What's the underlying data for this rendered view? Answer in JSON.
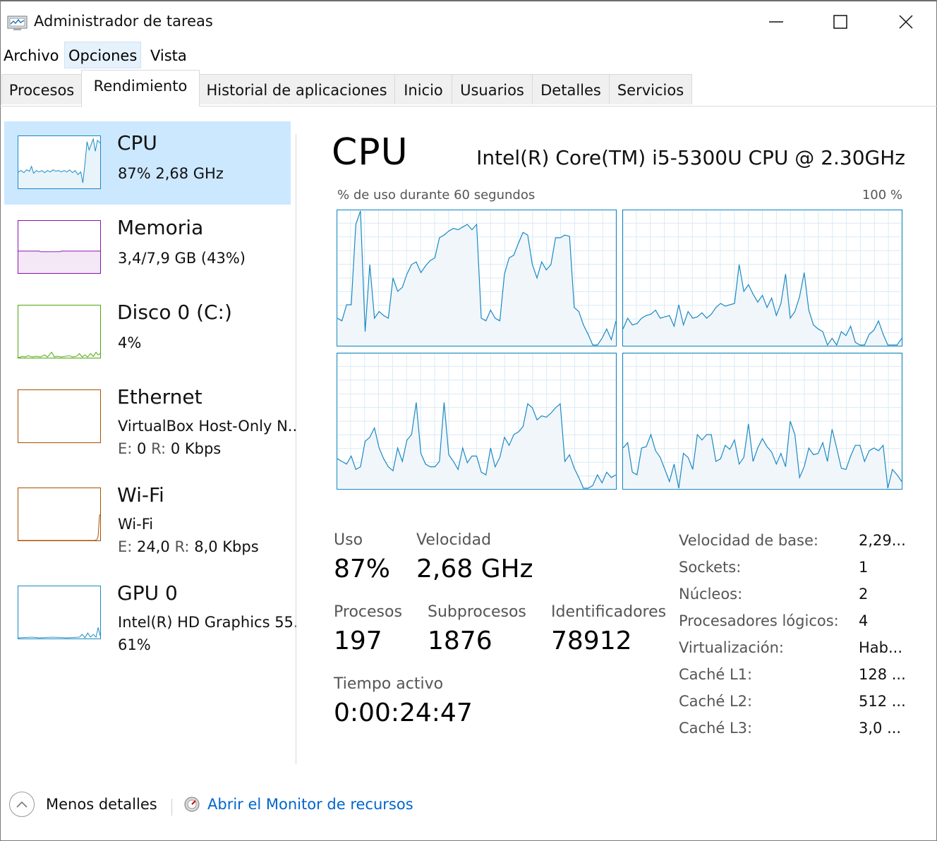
{
  "window": {
    "title": "Administrador de tareas"
  },
  "menu": [
    "Archivo",
    "Opciones",
    "Vista"
  ],
  "tabs": [
    "Procesos",
    "Rendimiento",
    "Historial de aplicaciones",
    "Inicio",
    "Usuarios",
    "Detalles",
    "Servicios"
  ],
  "sidebar": {
    "cpu": {
      "title": "CPU",
      "sub": "87%  2,68 GHz"
    },
    "memory": {
      "title": "Memoria",
      "sub": "3,4/7,9 GB (43%)"
    },
    "disk": {
      "title": "Disco 0 (C:)",
      "sub": "4%"
    },
    "ethernet": {
      "title": "Ethernet",
      "sub": "VirtualBox Host-Only N...",
      "send_label": "E:",
      "send_value": "0",
      "recv_label": "R:",
      "recv_value": "0 Kbps"
    },
    "wifi": {
      "title": "Wi-Fi",
      "sub": "Wi-Fi",
      "send_label": "E:",
      "send_value": "24,0",
      "recv_label": "R:",
      "recv_value": "8,0 Kbps"
    },
    "gpu": {
      "title": "GPU 0",
      "sub": "Intel(R) HD Graphics 55...",
      "sub2": "61%"
    }
  },
  "main": {
    "title": "CPU",
    "processor": "Intel(R) Core(TM) i5-5300U CPU @ 2.30GHz",
    "graph_caption": "% de uso durante 60 segundos",
    "graph_max": "100 %"
  },
  "stats": {
    "uso_label": "Uso",
    "uso_value": "87%",
    "vel_label": "Velocidad",
    "vel_value": "2,68 GHz",
    "proc_label": "Procesos",
    "proc_value": "197",
    "sub_label": "Subprocesos",
    "sub_value": "1876",
    "id_label": "Identificadores",
    "id_value": "78912",
    "up_label": "Tiempo activo",
    "up_value": "0:00:24:47"
  },
  "info": [
    {
      "label": "Velocidad de base:",
      "value": "2,29..."
    },
    {
      "label": "Sockets:",
      "value": "1"
    },
    {
      "label": "Núcleos:",
      "value": "2"
    },
    {
      "label": "Procesadores lógicos:",
      "value": "4"
    },
    {
      "label": "Virtualización:",
      "value": "Hab..."
    },
    {
      "label": "Caché L1:",
      "value": "128 ..."
    },
    {
      "label": "Caché L2:",
      "value": "512 ..."
    },
    {
      "label": "Caché L3:",
      "value": "3,0 ..."
    }
  ],
  "footer": {
    "less_details": "Menos detalles",
    "open_monitor": "Abrir el Monitor de recursos"
  },
  "colors": {
    "cpu": "#1a8ac4",
    "memory": "#8b12ae",
    "disk": "#4da60c",
    "network": "#a74f01",
    "gpu": "#1a8ac4",
    "selected": "#cce8ff",
    "link": "#0066cc"
  },
  "icons": [
    "task-manager-icon",
    "minimize-icon",
    "maximize-icon",
    "close-icon",
    "chevron-up-icon",
    "resource-monitor-icon"
  ]
}
